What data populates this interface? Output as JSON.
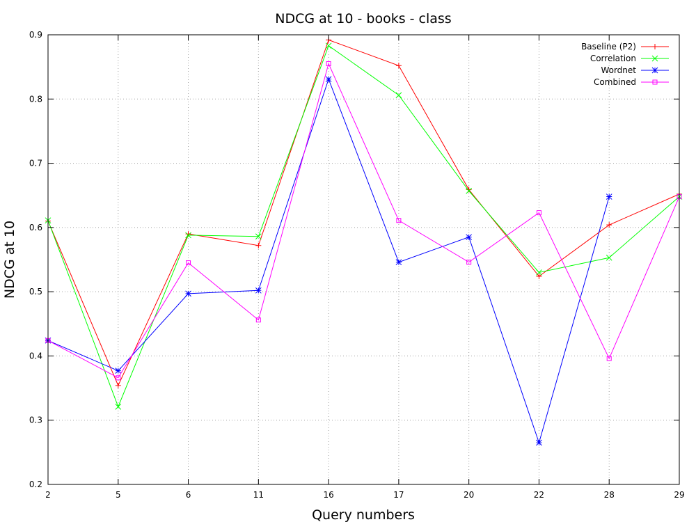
{
  "chart_data": {
    "type": "line",
    "title": "NDCG at 10 - books - class",
    "xlabel": "Query numbers",
    "ylabel": "NDCG at 10",
    "categories": [
      "2",
      "5",
      "6",
      "11",
      "16",
      "17",
      "20",
      "22",
      "28",
      "29"
    ],
    "ylim": [
      0.2,
      0.9
    ],
    "yticks": [
      "0.2",
      "0.3",
      "0.4",
      "0.5",
      "0.6",
      "0.7",
      "0.8",
      "0.9"
    ],
    "grid": true,
    "legend_position": "top-right",
    "series": [
      {
        "name": "Baseline (P2)",
        "color": "#ff0000",
        "marker": "plus",
        "values": [
          0.61,
          0.354,
          0.59,
          0.572,
          0.892,
          0.852,
          0.659,
          0.524,
          0.604,
          0.652
        ]
      },
      {
        "name": "Correlation",
        "color": "#00ff00",
        "marker": "cross",
        "values": [
          0.611,
          0.321,
          0.588,
          0.586,
          0.883,
          0.806,
          0.657,
          0.53,
          0.553,
          0.648
        ]
      },
      {
        "name": "Wordnet",
        "color": "#0000ff",
        "marker": "star",
        "values": [
          0.424,
          0.377,
          0.497,
          0.502,
          0.831,
          0.546,
          0.585,
          0.265,
          0.648,
          null
        ]
      },
      {
        "name": "Combined",
        "color": "#ff00ff",
        "marker": "square",
        "values": [
          0.424,
          0.366,
          0.545,
          0.456,
          0.855,
          0.611,
          0.546,
          0.623,
          0.396,
          0.648
        ]
      }
    ]
  }
}
